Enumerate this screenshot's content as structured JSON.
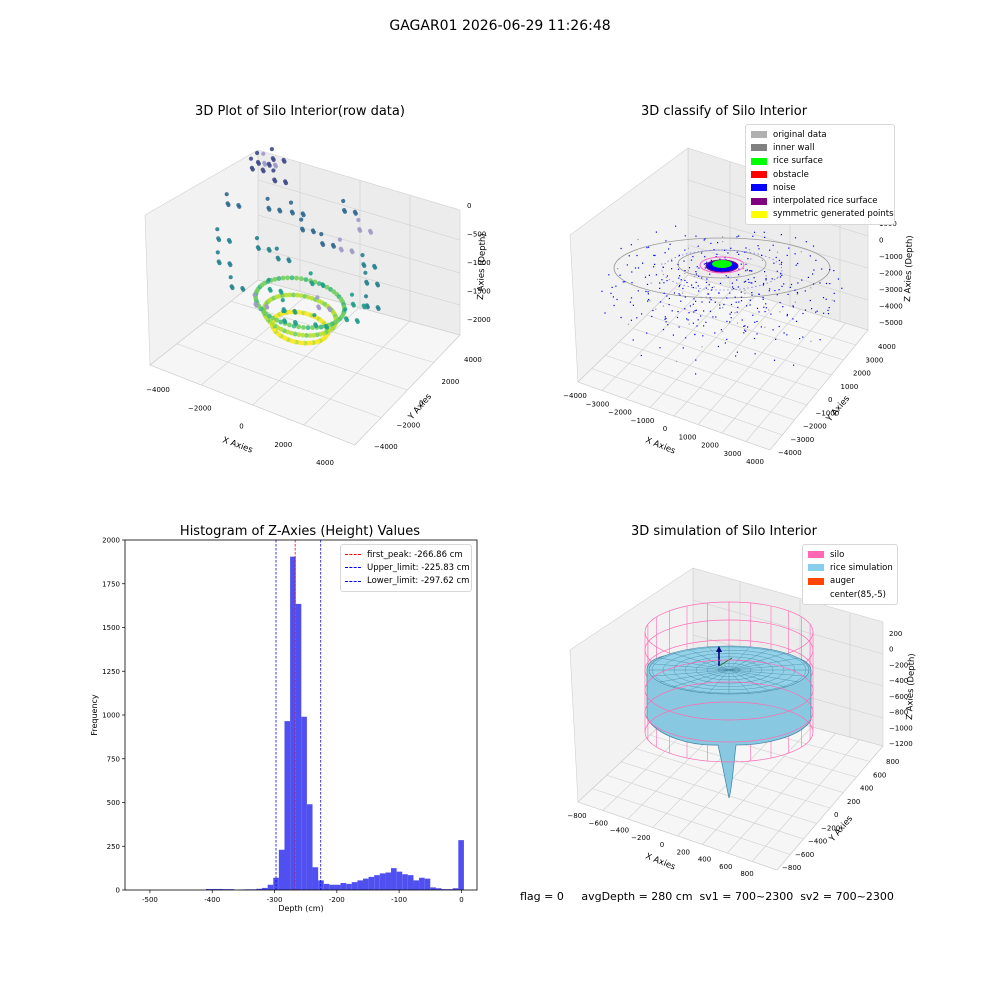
{
  "suptitle": "GAGAR01 2026-06-29 11:26:48",
  "footer": "flag = 0     avgDepth = 280 cm  sv1 = 700~2300  sv2 = 700~2300",
  "chart_data": [
    {
      "type": "scatter",
      "subtype": "3d",
      "title": "3D Plot of Silo Interior(row data)",
      "xlabel": "X Axies",
      "ylabel": "Y Axies",
      "zlabel": "Z Axies (Depth)",
      "x_ticks": [
        "−4000",
        "−2000",
        "0",
        "2000",
        "4000"
      ],
      "y_ticks": [
        "−4000",
        "−2000",
        "0",
        "2000",
        "4000"
      ],
      "z_ticks": [
        "0",
        "−500",
        "−1000",
        "−1500",
        "−2000"
      ],
      "colormap": "viridis",
      "series": [
        {
          "values": [
            [
              -900,
              -200,
              -320
            ],
            [
              -200,
              -800,
              -300
            ],
            [
              700,
              -300,
              -260
            ],
            [
              400,
              800,
              -280
            ],
            [
              -500,
              600,
              -300
            ],
            [
              0,
              -500,
              -140
            ],
            [
              500,
              200,
              -120
            ],
            [
              -300,
              300,
              -160
            ]
          ]
        },
        {
          "values": [
            [
              -1500,
              600,
              -700
            ],
            [
              -2000,
              -400,
              -800
            ],
            [
              1500,
              -800,
              -600
            ],
            [
              1800,
              1200,
              -650
            ],
            [
              -1000,
              1800,
              -600
            ],
            [
              2500,
              1800,
              -700
            ],
            [
              2800,
              2200,
              -750
            ]
          ]
        },
        {
          "values": [
            [
              -3000,
              -2600,
              -1900
            ],
            [
              -2500,
              -1500,
              -1500
            ],
            [
              -1200,
              -2200,
              -1400
            ],
            [
              900,
              -1600,
              -1300
            ],
            [
              1900,
              -1700,
              -1200
            ],
            [
              3000,
              300,
              -1100
            ],
            [
              -2600,
              1600,
              -1100
            ],
            [
              200,
              2600,
              -1000
            ]
          ]
        }
      ]
    },
    {
      "type": "scatter",
      "subtype": "3d",
      "title": "3D classify of Silo Interior",
      "xlabel": "X Axies",
      "ylabel": "Y Axies",
      "zlabel": "Z Axies (Depth)",
      "x_ticks": [
        "−4000",
        "−3000",
        "−2000",
        "−1000",
        "0",
        "1000",
        "2000",
        "3000",
        "4000"
      ],
      "y_ticks": [
        "−4000",
        "−3000",
        "−2000",
        "−1000",
        "0",
        "1000",
        "2000",
        "3000",
        "4000"
      ],
      "z_ticks": [
        "1000",
        "0",
        "−1000",
        "−2000",
        "−3000",
        "−4000",
        "−5000"
      ],
      "legend": [
        {
          "label": "original data",
          "color": "#b0b0b0"
        },
        {
          "label": "inner wall",
          "color": "#808080"
        },
        {
          "label": "rice surface",
          "color": "#00ff00"
        },
        {
          "label": "obstacle",
          "color": "#ff0000"
        },
        {
          "label": "noise",
          "color": "#0000ff"
        },
        {
          "label": "interpolated rice surface",
          "color": "#800080"
        },
        {
          "label": "symmetric generated points",
          "color": "#ffff00"
        }
      ]
    },
    {
      "type": "bar",
      "subtype": "histogram",
      "title": "Histogram of Z-Axies (Height) Values",
      "xlabel": "Depth (cm)",
      "ylabel": "Frequency",
      "xlim": [
        -540,
        25
      ],
      "ylim": [
        0,
        2000
      ],
      "x_ticks": [
        -500,
        -400,
        -300,
        -200,
        -100,
        0
      ],
      "y_ticks": [
        0,
        250,
        500,
        750,
        1000,
        1250,
        1500,
        1750,
        2000
      ],
      "bar_color": "#5050f0",
      "bin_width": 9,
      "bins": [
        {
          "x": -410,
          "v": 6
        },
        {
          "x": -401,
          "v": 6
        },
        {
          "x": -392,
          "v": 6
        },
        {
          "x": -383,
          "v": 5
        },
        {
          "x": -374,
          "v": 5
        },
        {
          "x": -356,
          "v": 3
        },
        {
          "x": -347,
          "v": 4
        },
        {
          "x": -338,
          "v": 4
        },
        {
          "x": -329,
          "v": 7
        },
        {
          "x": -320,
          "v": 12
        },
        {
          "x": -311,
          "v": 30
        },
        {
          "x": -302,
          "v": 70
        },
        {
          "x": -293,
          "v": 230
        },
        {
          "x": -284,
          "v": 965
        },
        {
          "x": -275,
          "v": 1905
        },
        {
          "x": -266,
          "v": 1635
        },
        {
          "x": -257,
          "v": 990
        },
        {
          "x": -248,
          "v": 490
        },
        {
          "x": -239,
          "v": 130
        },
        {
          "x": -230,
          "v": 55
        },
        {
          "x": -221,
          "v": 35
        },
        {
          "x": -212,
          "v": 30
        },
        {
          "x": -203,
          "v": 30
        },
        {
          "x": -194,
          "v": 40
        },
        {
          "x": -185,
          "v": 35
        },
        {
          "x": -176,
          "v": 45
        },
        {
          "x": -167,
          "v": 55
        },
        {
          "x": -158,
          "v": 65
        },
        {
          "x": -149,
          "v": 75
        },
        {
          "x": -140,
          "v": 85
        },
        {
          "x": -131,
          "v": 95
        },
        {
          "x": -122,
          "v": 100
        },
        {
          "x": -113,
          "v": 125
        },
        {
          "x": -104,
          "v": 105
        },
        {
          "x": -95,
          "v": 90
        },
        {
          "x": -86,
          "v": 85
        },
        {
          "x": -77,
          "v": 55
        },
        {
          "x": -68,
          "v": 70
        },
        {
          "x": -59,
          "v": 65
        },
        {
          "x": -50,
          "v": 15
        },
        {
          "x": -41,
          "v": 10
        },
        {
          "x": -32,
          "v": 5
        },
        {
          "x": -23,
          "v": 5
        },
        {
          "x": -14,
          "v": 10
        },
        {
          "x": -5,
          "v": 285
        }
      ],
      "vlines": [
        {
          "x": -266.86,
          "color": "#ff0000",
          "label": "first_peak: -266.86 cm"
        },
        {
          "x": -225.83,
          "color": "#0000ff",
          "label": "Upper_limit: -225.83 cm"
        },
        {
          "x": -297.62,
          "color": "#0000ff",
          "label": "Lower_limit: -297.62 cm"
        }
      ]
    },
    {
      "type": "surface",
      "subtype": "3d",
      "title": "3D simulation of Silo Interior",
      "xlabel": "X Axies",
      "ylabel": "Y Axies",
      "zlabel": "Z Axies (Depth)",
      "x_ticks": [
        "−800",
        "−600",
        "−400",
        "−200",
        "0",
        "200",
        "400",
        "600",
        "800"
      ],
      "y_ticks": [
        "−800",
        "−600",
        "−400",
        "−200",
        "0",
        "200",
        "400",
        "600",
        "800"
      ],
      "z_ticks": [
        "200",
        "0",
        "−200",
        "−400",
        "−600",
        "−800",
        "−1000",
        "−1200"
      ],
      "legend": [
        {
          "label": "silo",
          "color": "#ff69b4"
        },
        {
          "label": "rice simulation",
          "color": "#87ceeb"
        },
        {
          "label": "auger",
          "color": "#ff4500"
        },
        {
          "label": "center(85,-5)",
          "color": "#ffffff"
        }
      ]
    }
  ]
}
